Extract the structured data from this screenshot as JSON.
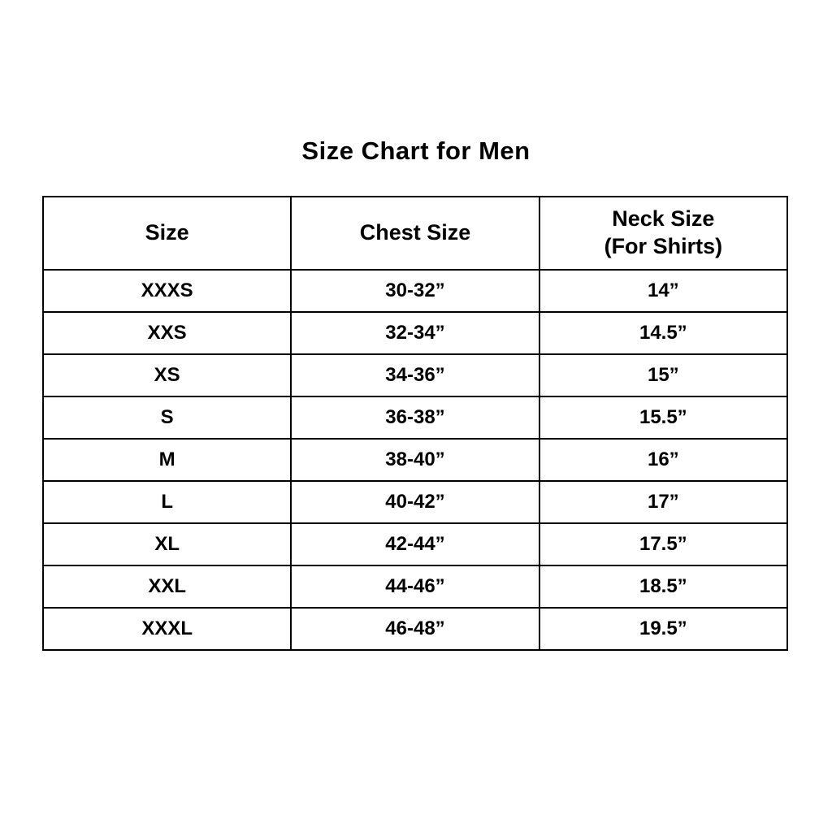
{
  "title": "Size Chart for Men",
  "table": {
    "headers": {
      "size": "Size",
      "chest": "Chest Size",
      "neck_line1": "Neck Size",
      "neck_line2": "(For Shirts)"
    },
    "rows": [
      {
        "size": "XXXS",
        "chest": "30-32”",
        "neck": "14”"
      },
      {
        "size": "XXS",
        "chest": "32-34”",
        "neck": "14.5”"
      },
      {
        "size": "XS",
        "chest": "34-36”",
        "neck": "15”"
      },
      {
        "size": "S",
        "chest": "36-38”",
        "neck": "15.5”"
      },
      {
        "size": "M",
        "chest": "38-40”",
        "neck": "16”"
      },
      {
        "size": "L",
        "chest": "40-42”",
        "neck": "17”"
      },
      {
        "size": "XL",
        "chest": "42-44”",
        "neck": "17.5”"
      },
      {
        "size": "XXL",
        "chest": "44-46”",
        "neck": "18.5”"
      },
      {
        "size": "XXXL",
        "chest": "46-48”",
        "neck": "19.5”"
      }
    ]
  },
  "chart_data": {
    "type": "table",
    "title": "Size Chart for Men",
    "columns": [
      "Size",
      "Chest Size",
      "Neck Size (For Shirts)"
    ],
    "rows": [
      [
        "XXXS",
        "30-32”",
        "14”"
      ],
      [
        "XXS",
        "32-34”",
        "14.5”"
      ],
      [
        "XS",
        "34-36”",
        "15”"
      ],
      [
        "S",
        "36-38”",
        "15.5”"
      ],
      [
        "M",
        "38-40”",
        "16”"
      ],
      [
        "L",
        "40-42”",
        "17”"
      ],
      [
        "XL",
        "42-44”",
        "17.5”"
      ],
      [
        "XXL",
        "44-46”",
        "18.5”"
      ],
      [
        "XXXL",
        "46-48”",
        "19.5”"
      ]
    ],
    "layout": {
      "grid": true,
      "header_rows": 1
    }
  },
  "colors": {
    "background": "#ffffff",
    "border": "#000000",
    "text": "#000000"
  }
}
